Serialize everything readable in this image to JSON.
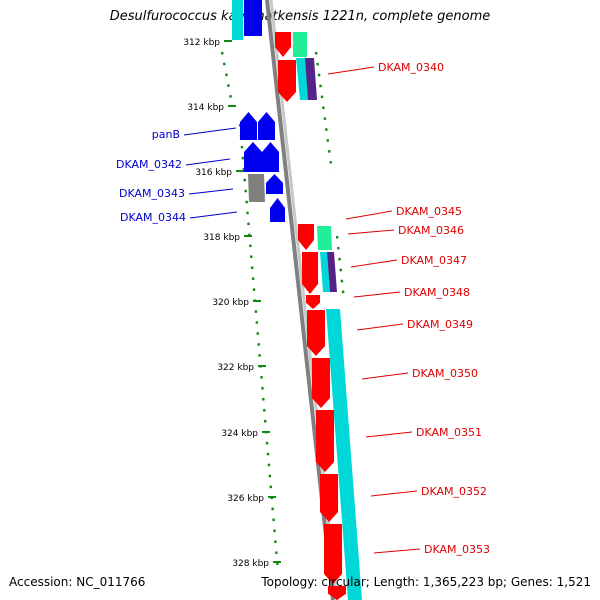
{
  "title": "Desulfurococcus kamchatkensis 1221n, complete genome",
  "footer": {
    "accession": "Accession: NC_011766",
    "topology": "Topology: circular; Length: 1,365,223 bp; Genes: 1,521"
  },
  "colors": {
    "forward_cds": "#ff0000",
    "reverse_cds": "#0000ee",
    "other_cds": "#808080",
    "feature_cyan": "#00d8d8",
    "feature_green": "#22ee99",
    "feature_purple": "#552288",
    "backbone": "#808080",
    "tick": "#118811",
    "label_forward": "#dd0000",
    "label_reverse": "#0000cc"
  },
  "ticks": [
    "312 kbp",
    "314 kbp",
    "316 kbp",
    "318 kbp",
    "320 kbp",
    "322 kbp",
    "324 kbp",
    "326 kbp",
    "328 kbp"
  ],
  "genes_reverse": [
    "panB",
    "DKAM_0342",
    "DKAM_0343",
    "DKAM_0344"
  ],
  "genes_forward": [
    "DKAM_0340",
    "DKAM_0345",
    "DKAM_0346",
    "DKAM_0347",
    "DKAM_0348",
    "DKAM_0349",
    "DKAM_0350",
    "DKAM_0351",
    "DKAM_0352",
    "DKAM_0353"
  ]
}
